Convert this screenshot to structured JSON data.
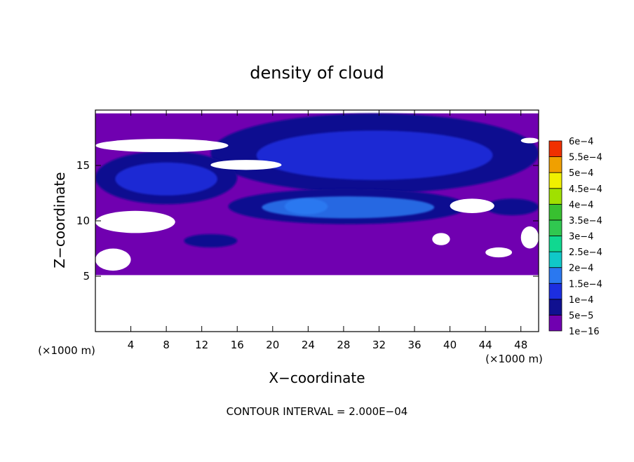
{
  "chart_data": {
    "type": "heatmap",
    "title": "density of cloud",
    "xlabel": "X−coordinate",
    "ylabel": "Z−coordinate",
    "x_unit": "(×1000 m)",
    "z_unit": "(×1000 m)",
    "xlim": [
      0,
      50
    ],
    "ylim": [
      0,
      20
    ],
    "x_ticks": [
      4,
      8,
      12,
      16,
      20,
      24,
      28,
      32,
      36,
      40,
      44,
      48
    ],
    "x_tick_labels": [
      "4",
      "8",
      "12",
      "16",
      "20",
      "24",
      "28",
      "32",
      "36",
      "40",
      "44",
      "48"
    ],
    "y_ticks": [
      5,
      10,
      15
    ],
    "y_tick_labels": [
      "5",
      "10",
      "15"
    ],
    "footnote": "CONTOUR INTERVAL = 2.000E−04",
    "colorbar": {
      "levels": [
        "1e−16",
        "5e−5",
        "1e−4",
        "1.5e−4",
        "2e−4",
        "2.5e−4",
        "3e−4",
        "3.5e−4",
        "4e−4",
        "4.5e−4",
        "5e−4",
        "5.5e−4",
        "6e−4"
      ],
      "colors": [
        "#7000b0",
        "#101090",
        "#1c2ee0",
        "#2a78f0",
        "#10c8c8",
        "#10d890",
        "#30c850",
        "#38c030",
        "#a0e000",
        "#f0f000",
        "#f0a000",
        "#f03000",
        "#f08080"
      ]
    },
    "fields": [
      {
        "name": "background cloud",
        "level": 0,
        "x": [
          0,
          50
        ],
        "z": [
          5.1,
          19.7
        ]
      },
      {
        "name": "upper band",
        "level": 1,
        "x": [
          13,
          50
        ],
        "z": [
          12.5,
          19.7
        ],
        "peak_level": 2
      },
      {
        "name": "left lobe",
        "level": 1,
        "x": [
          0,
          16
        ],
        "z": [
          11.5,
          16.3
        ],
        "peak_level": 2
      },
      {
        "name": "mid billows",
        "level": 1,
        "x": [
          15,
          42
        ],
        "z": [
          9.7,
          12.9
        ],
        "peak_level": 3
      },
      {
        "name": "right eddy",
        "level": 1,
        "x": [
          44,
          50
        ],
        "z": [
          10.5,
          12.0
        ]
      },
      {
        "name": "low streak",
        "level": 1,
        "x": [
          10,
          16
        ],
        "z": [
          7.6,
          8.8
        ]
      }
    ],
    "cloud_free_gaps": [
      {
        "x": [
          0,
          15
        ],
        "z": [
          16.2,
          17.4
        ]
      },
      {
        "x": [
          13,
          21
        ],
        "z": [
          14.6,
          15.5
        ]
      },
      {
        "x": [
          0,
          9
        ],
        "z": [
          8.9,
          10.9
        ]
      },
      {
        "x": [
          0,
          4
        ],
        "z": [
          5.5,
          7.5
        ]
      },
      {
        "x": [
          40,
          45
        ],
        "z": [
          10.7,
          12.0
        ]
      },
      {
        "x": [
          38,
          40
        ],
        "z": [
          7.8,
          8.9
        ]
      },
      {
        "x": [
          44,
          47
        ],
        "z": [
          6.7,
          7.6
        ]
      },
      {
        "x": [
          48,
          50
        ],
        "z": [
          7.5,
          9.5
        ]
      },
      {
        "x": [
          48,
          50
        ],
        "z": [
          17.0,
          17.5
        ]
      }
    ]
  }
}
